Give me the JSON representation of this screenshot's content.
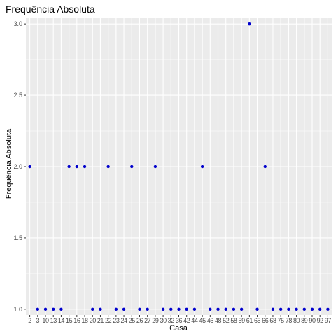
{
  "chart_data": {
    "type": "scatter",
    "title": "Frequência Absoluta",
    "xlabel": "Casa",
    "ylabel": "Frequência Absoluta",
    "x_type": "categorical",
    "categories": [
      "2",
      "3",
      "10",
      "13",
      "14",
      "15",
      "16",
      "18",
      "20",
      "21",
      "22",
      "23",
      "24",
      "25",
      "26",
      "27",
      "29",
      "30",
      "32",
      "36",
      "42",
      "44",
      "45",
      "46",
      "48",
      "52",
      "58",
      "59",
      "61",
      "65",
      "66",
      "68",
      "75",
      "78",
      "80",
      "89",
      "90",
      "92",
      "97"
    ],
    "values": [
      2,
      1,
      1,
      1,
      1,
      2,
      2,
      2,
      1,
      1,
      2,
      1,
      1,
      2,
      1,
      1,
      2,
      1,
      1,
      1,
      1,
      1,
      2,
      1,
      1,
      1,
      1,
      1,
      3,
      1,
      2,
      1,
      1,
      1,
      1,
      1,
      1,
      1,
      1
    ],
    "y_ticks": [
      "1.0",
      "1.5",
      "2.0",
      "2.5",
      "3.0"
    ],
    "ylim": [
      0.96,
      3.04
    ],
    "grid": true,
    "point_color": "#0000CC",
    "panel_color": "#EBEBEB",
    "grid_color": "#FFFFFF"
  }
}
